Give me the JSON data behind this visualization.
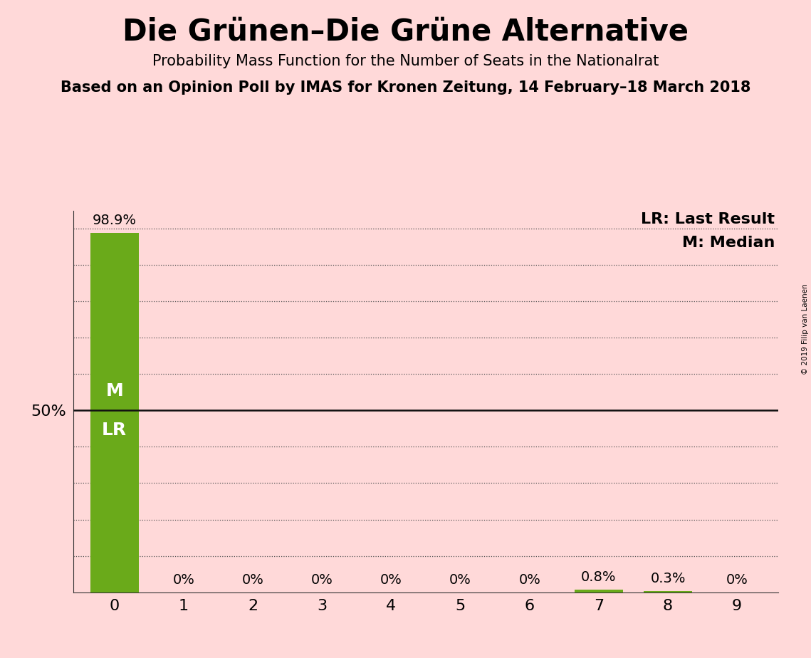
{
  "title": "Die Grünen–Die Grüne Alternative",
  "subtitle1": "Probability Mass Function for the Number of Seats in the Nationalrat",
  "subtitle2": "Based on an Opinion Poll by IMAS for Kronen Zeitung, 14 February–18 March 2018",
  "copyright": "© 2019 Filip van Laenen",
  "categories": [
    0,
    1,
    2,
    3,
    4,
    5,
    6,
    7,
    8,
    9
  ],
  "values": [
    98.9,
    0.0,
    0.0,
    0.0,
    0.0,
    0.0,
    0.0,
    0.8,
    0.3,
    0.0
  ],
  "bar_labels": [
    "98.9%",
    "0%",
    "0%",
    "0%",
    "0%",
    "0%",
    "0%",
    "0.8%",
    "0.3%",
    "0%"
  ],
  "bar_color": "#6aaa1a",
  "background_color": "#ffd9d9",
  "median_value": 50.0,
  "lr_value": 50.0,
  "median_label": "M",
  "lr_label": "LR",
  "hline_color": "#111111",
  "dotted_color": "#555555",
  "title_fontsize": 30,
  "subtitle1_fontsize": 15,
  "subtitle2_fontsize": 15,
  "bar_label_fontsize": 14,
  "axis_tick_fontsize": 16,
  "legend_fontsize": 16,
  "ml_label_fontsize": 18,
  "ylim": [
    0,
    105
  ],
  "yticks": [
    10,
    20,
    30,
    40,
    60,
    70,
    80,
    90,
    100
  ]
}
